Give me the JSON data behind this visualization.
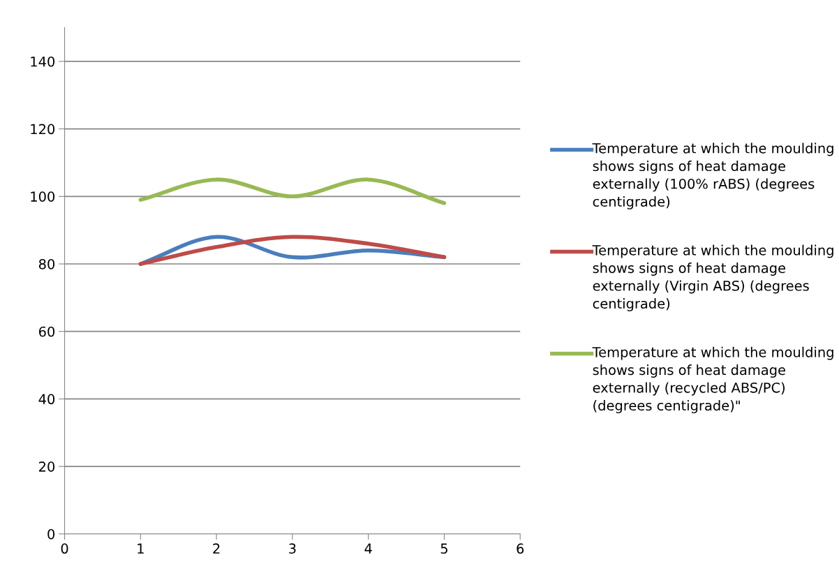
{
  "chart_data": {
    "type": "line",
    "x": [
      1,
      2,
      3,
      4,
      5
    ],
    "series": [
      {
        "name": "Temperature at which the moulding shows signs of heat damage externally (100% rABS) (degrees centigrade)",
        "color": "#4a7ebb",
        "values": [
          80,
          88,
          82,
          84,
          82
        ]
      },
      {
        "name": "Temperature at which the moulding shows signs of heat damage externally (Virgin ABS) (degrees centigrade)",
        "color": "#be4b48",
        "values": [
          80,
          85,
          88,
          86,
          82
        ]
      },
      {
        "name": "Temperature at which the moulding shows signs of heat damage externally (recycled ABS/PC) (degrees centigrade)\"",
        "color": "#98b954",
        "values": [
          99,
          105,
          100,
          105,
          98
        ]
      }
    ],
    "xlim": [
      0,
      6
    ],
    "xticks": [
      0,
      1,
      2,
      3,
      4,
      5,
      6
    ],
    "ylim": [
      0,
      150
    ],
    "yticks": [
      0,
      20,
      40,
      60,
      80,
      100,
      120,
      140
    ],
    "grid": "y",
    "legend": "right",
    "marker": "none",
    "line_style": "solid"
  }
}
